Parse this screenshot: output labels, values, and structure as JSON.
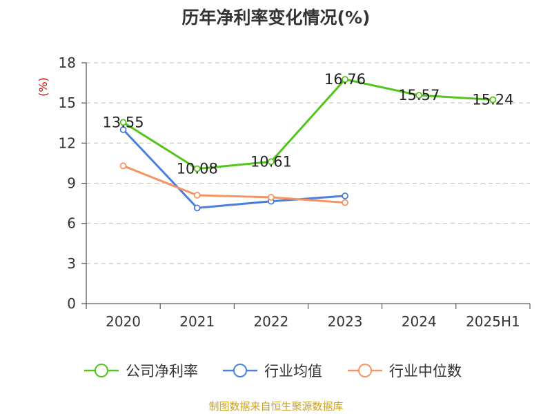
{
  "chart_data": {
    "type": "line",
    "title": "历年净利率变化情况(%)",
    "ylabel": "(%)",
    "xlabel": "",
    "categories": [
      "2020",
      "2021",
      "2022",
      "2023",
      "2024",
      "2025H1"
    ],
    "ylim": [
      0,
      18
    ],
    "yticks": [
      0,
      3,
      6,
      9,
      12,
      15,
      18
    ],
    "grid": true,
    "legend_position": "bottom",
    "series": [
      {
        "name": "公司净利率",
        "color": "#52c41a",
        "values": [
          13.55,
          10.08,
          10.61,
          16.76,
          15.57,
          15.24
        ],
        "labels": [
          "13.55",
          "10.08",
          "10.61",
          "16.76",
          "15.57",
          "15.24"
        ]
      },
      {
        "name": "行业均值",
        "color": "#4a7fdc",
        "values": [
          13.0,
          7.15,
          7.65,
          8.05,
          null,
          null
        ]
      },
      {
        "name": "行业中位数",
        "color": "#f59462",
        "values": [
          10.3,
          8.1,
          7.95,
          7.55,
          null,
          null
        ]
      }
    ]
  },
  "source": "制图数据来自恒生聚源数据库"
}
